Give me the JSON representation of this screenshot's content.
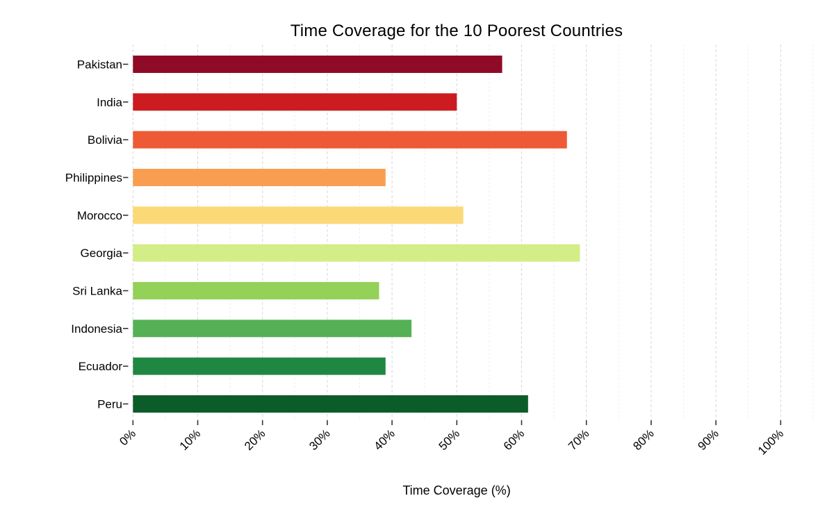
{
  "chart_data": {
    "type": "bar",
    "orientation": "horizontal",
    "title": "Time Coverage for the 10 Poorest Countries",
    "xlabel": "Time Coverage (%)",
    "ylabel": "",
    "categories": [
      "Pakistan",
      "India",
      "Bolivia",
      "Philippines",
      "Morocco",
      "Georgia",
      "Sri Lanka",
      "Indonesia",
      "Ecuador",
      "Peru"
    ],
    "values": [
      57,
      50,
      67,
      39,
      51,
      69,
      38,
      43,
      39,
      61
    ],
    "unit": "%",
    "bar_colors": [
      "#8f0a26",
      "#cc1c1f",
      "#ee5a35",
      "#f99e51",
      "#fbd977",
      "#d3ed87",
      "#93d158",
      "#54b155",
      "#1e8843",
      "#0c5c2a"
    ],
    "xlim": [
      0,
      105
    ],
    "x_major_ticks": [
      0,
      10,
      20,
      30,
      40,
      50,
      60,
      70,
      80,
      90,
      100
    ],
    "x_tick_labels": [
      "0%",
      "10%",
      "20%",
      "30%",
      "40%",
      "50%",
      "60%",
      "70%",
      "80%",
      "90%",
      "100%"
    ],
    "x_minor_step": 5,
    "x_tick_label_rotation_deg": -45,
    "grid": {
      "major_color": "#d8d8d8",
      "major_style": "dashed",
      "minor_color": "#eeeeee",
      "minor_style": "dashed"
    },
    "tick_color": "#333333",
    "legend": "none",
    "background": "#ffffff"
  }
}
